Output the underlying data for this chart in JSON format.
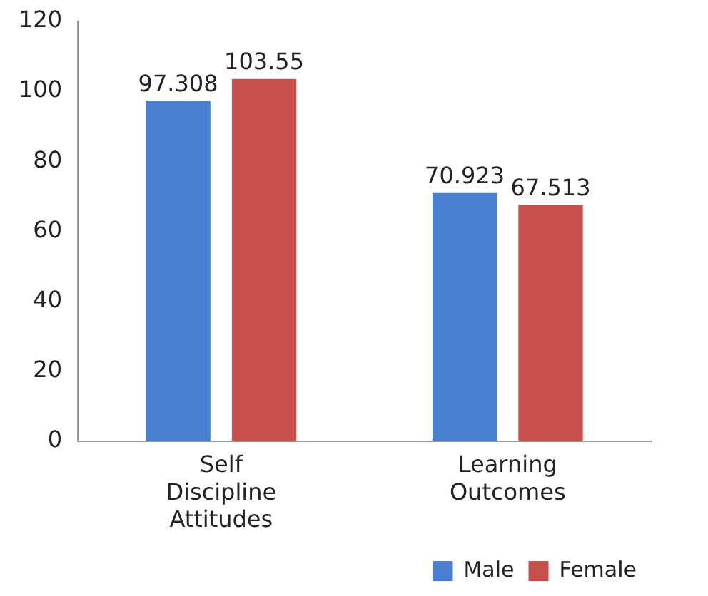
{
  "chart_data": {
    "type": "bar",
    "categories": [
      "Self Discipline Attitudes",
      "Learning Outcomes"
    ],
    "series": [
      {
        "name": "Male",
        "color": "#4a7fd0",
        "values": [
          97.308,
          70.923
        ]
      },
      {
        "name": "Female",
        "color": "#c5504d",
        "values": [
          103.55,
          67.513
        ]
      }
    ],
    "ylim": [
      0,
      120
    ],
    "yticks": [
      0,
      20,
      40,
      60,
      80,
      100,
      120
    ],
    "grid": false,
    "legend": "bottom right",
    "data_labels": true
  }
}
